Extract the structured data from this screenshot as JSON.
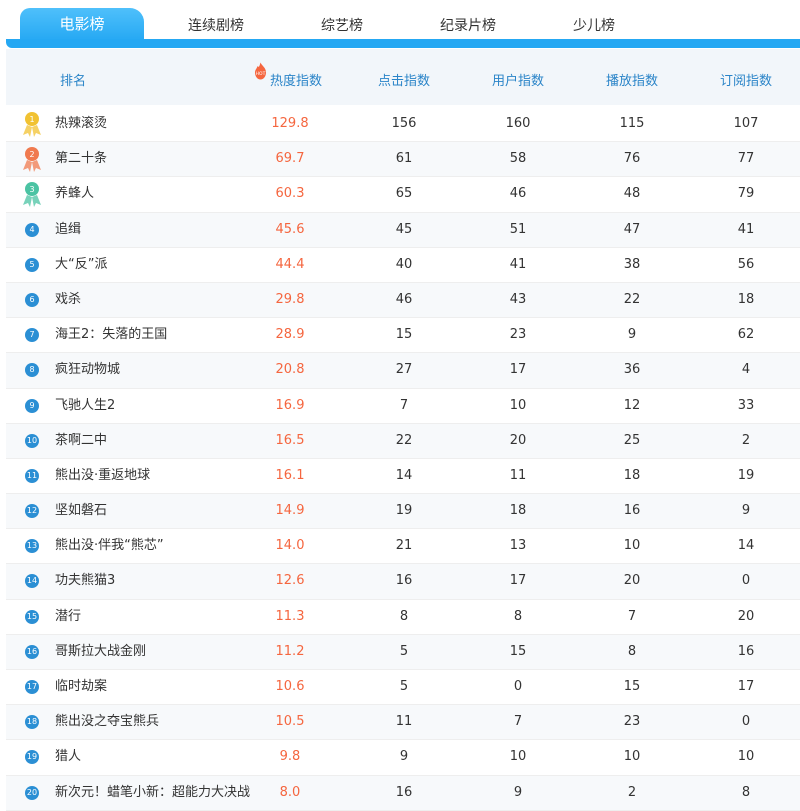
{
  "tabs": [
    {
      "label": "电影榜",
      "active": true
    },
    {
      "label": "连续剧榜",
      "active": false
    },
    {
      "label": "综艺榜",
      "active": false
    },
    {
      "label": "纪录片榜",
      "active": false
    },
    {
      "label": "少儿榜",
      "active": false
    }
  ],
  "header": {
    "rank": "排名",
    "hot": "热度指数",
    "hot_icon_text": "HOT",
    "click": "点击指数",
    "user": "用户指数",
    "play": "播放指数",
    "subscribe": "订阅指数"
  },
  "colors": {
    "accent": "#25a8f3",
    "header_text": "#2a84c8",
    "hot_value": "#f5663f",
    "gold": "#f1c232",
    "silver_red": "#f07a4f",
    "bronze_green": "#4bc3a3"
  },
  "rows": [
    {
      "rank": "1",
      "name": "热辣滚烫",
      "hot": "129.8",
      "click": "156",
      "user": "160",
      "play": "115",
      "subscribe": "107"
    },
    {
      "rank": "2",
      "name": "第二十条",
      "hot": "69.7",
      "click": "61",
      "user": "58",
      "play": "76",
      "subscribe": "77"
    },
    {
      "rank": "3",
      "name": "养蜂人",
      "hot": "60.3",
      "click": "65",
      "user": "46",
      "play": "48",
      "subscribe": "79"
    },
    {
      "rank": "4",
      "name": "追缉",
      "hot": "45.6",
      "click": "45",
      "user": "51",
      "play": "47",
      "subscribe": "41"
    },
    {
      "rank": "5",
      "name": "大“反”派",
      "hot": "44.4",
      "click": "40",
      "user": "41",
      "play": "38",
      "subscribe": "56"
    },
    {
      "rank": "6",
      "name": "戏杀",
      "hot": "29.8",
      "click": "46",
      "user": "43",
      "play": "22",
      "subscribe": "18"
    },
    {
      "rank": "7",
      "name": "海王2：失落的王国",
      "hot": "28.9",
      "click": "15",
      "user": "23",
      "play": "9",
      "subscribe": "62"
    },
    {
      "rank": "8",
      "name": "疯狂动物城",
      "hot": "20.8",
      "click": "27",
      "user": "17",
      "play": "36",
      "subscribe": "4"
    },
    {
      "rank": "9",
      "name": "飞驰人生2",
      "hot": "16.9",
      "click": "7",
      "user": "10",
      "play": "12",
      "subscribe": "33"
    },
    {
      "rank": "10",
      "name": "茶啊二中",
      "hot": "16.5",
      "click": "22",
      "user": "20",
      "play": "25",
      "subscribe": "2"
    },
    {
      "rank": "11",
      "name": "熊出没·重返地球",
      "hot": "16.1",
      "click": "14",
      "user": "11",
      "play": "18",
      "subscribe": "19"
    },
    {
      "rank": "12",
      "name": "坚如磐石",
      "hot": "14.9",
      "click": "19",
      "user": "18",
      "play": "16",
      "subscribe": "9"
    },
    {
      "rank": "13",
      "name": "熊出没·伴我“熊芯”",
      "hot": "14.0",
      "click": "21",
      "user": "13",
      "play": "10",
      "subscribe": "14"
    },
    {
      "rank": "14",
      "name": "功夫熊猫3",
      "hot": "12.6",
      "click": "16",
      "user": "17",
      "play": "20",
      "subscribe": "0"
    },
    {
      "rank": "15",
      "name": "潜行",
      "hot": "11.3",
      "click": "8",
      "user": "8",
      "play": "7",
      "subscribe": "20"
    },
    {
      "rank": "16",
      "name": "哥斯拉大战金刚",
      "hot": "11.2",
      "click": "5",
      "user": "15",
      "play": "8",
      "subscribe": "16"
    },
    {
      "rank": "17",
      "name": "临时劫案",
      "hot": "10.6",
      "click": "5",
      "user": "0",
      "play": "15",
      "subscribe": "17"
    },
    {
      "rank": "18",
      "name": "熊出没之夺宝熊兵",
      "hot": "10.5",
      "click": "11",
      "user": "7",
      "play": "23",
      "subscribe": "0"
    },
    {
      "rank": "19",
      "name": "猎人",
      "hot": "9.8",
      "click": "9",
      "user": "10",
      "play": "10",
      "subscribe": "10"
    },
    {
      "rank": "20",
      "name": "新次元！蜡笔小新：超能力大决战",
      "hot": "8.0",
      "click": "16",
      "user": "9",
      "play": "2",
      "subscribe": "8"
    }
  ]
}
